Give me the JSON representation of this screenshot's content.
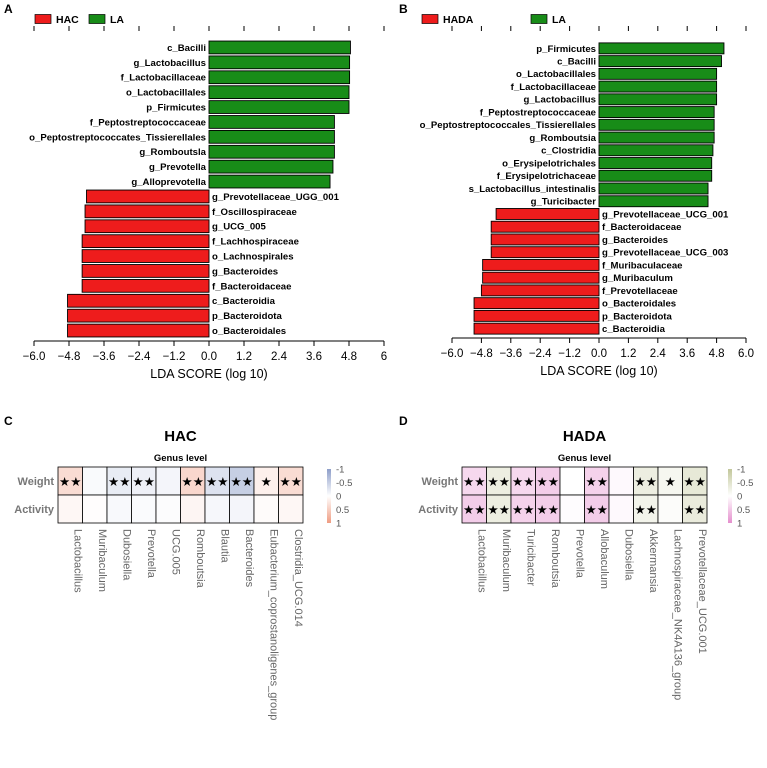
{
  "panels": {
    "A": "A",
    "B": "B",
    "C": "C",
    "D": "D"
  },
  "colors": {
    "red": "#ee1c1c",
    "green": "#188c18",
    "blue_max": "#8d9ec9",
    "red_max": "#ef9c82",
    "pink_max": "#e58fcd",
    "olive_max": "#c2c79a"
  },
  "chart_data": [
    {
      "type": "bar",
      "orientation": "horizontal",
      "panel": "A",
      "legend": [
        "HAC",
        "LA"
      ],
      "legend_position": "top-left",
      "xlabel": "LDA SCORE (log 10)",
      "xlim": [
        -6.0,
        6.0
      ],
      "xticks": [
        "−6.0",
        "−4.8",
        "−3.6",
        "−2.4",
        "−1.2",
        "0.0",
        "1.2",
        "2.4",
        "3.6",
        "4.8",
        "6"
      ],
      "xtick_values": [
        -6.0,
        -4.8,
        -3.6,
        -2.4,
        -1.2,
        0.0,
        1.2,
        2.4,
        3.6,
        4.8,
        6.0
      ],
      "categories": [
        "c_Bacilli",
        "g_Lactobacillus",
        "f_Lactobacillaceae",
        "o_Lactobacillales",
        "p_Firmicutes",
        "f_Peptostreptococcaceae",
        "o_Peptostreptococcates_Tissierellales",
        "g_Romboutsla",
        "g_Prevotella",
        "g_Alloprevotella",
        "g_Prevotellaceae_UGG_001",
        "f_Oscillospiraceae",
        "g_UCG_005",
        "f_Lachhospiraceae",
        "o_Lachnospirales",
        "g_Bacteroides",
        "f_Bacteroidaceae",
        "c_Bacteroidia",
        "p_Bacteroidota",
        "o_Bacteroidales"
      ],
      "values": [
        4.85,
        4.82,
        4.82,
        4.8,
        4.8,
        4.3,
        4.3,
        4.3,
        4.25,
        4.15,
        -4.2,
        -4.25,
        -4.25,
        -4.35,
        -4.35,
        -4.35,
        -4.35,
        -4.85,
        -4.85,
        -4.85
      ],
      "groups": [
        "LA",
        "LA",
        "LA",
        "LA",
        "LA",
        "LA",
        "LA",
        "LA",
        "LA",
        "LA",
        "HAC",
        "HAC",
        "HAC",
        "HAC",
        "HAC",
        "HAC",
        "HAC",
        "HAC",
        "HAC",
        "HAC"
      ]
    },
    {
      "type": "bar",
      "orientation": "horizontal",
      "panel": "B",
      "legend": [
        "HADA",
        "LA"
      ],
      "legend_position": "top-left",
      "xlabel": "LDA SCORE (log 10)",
      "xlim": [
        -6.0,
        6.0
      ],
      "xticks": [
        "−6.0",
        "−4.8",
        "−3.6",
        "−2.4",
        "−1.2",
        "0.0",
        "1.2",
        "2.4",
        "3.6",
        "4.8",
        "6.0"
      ],
      "xtick_values": [
        -6.0,
        -4.8,
        -3.6,
        -2.4,
        -1.2,
        0.0,
        1.2,
        2.4,
        3.6,
        4.8,
        6.0
      ],
      "categories": [
        "p_Firmicutes",
        "c_Bacilli",
        "o_Lactobacillales",
        "f_Lactobacillaceae",
        "g_Lactobacillus",
        "f_Peptostreptococcaceae",
        "o_Peptostreptococcales_Tissierellales",
        "g_Romboutsia",
        "c_Clostridia",
        "o_Erysipelotrichales",
        "f_Erysipelotrichaceae",
        "s_Lactobacillus_intestinalis",
        "g_Turicibacter",
        "g_Prevotellaceae_UCG_001",
        "f_Bacteroidaceae",
        "g_Bacteroides",
        "g_Prevotellaceae_UCG_003",
        "f_Muribaculaceae",
        "g_Muribaculum",
        "f_Prevotellaceae",
        "o_Bacteroidales",
        "p_Bacteroidota",
        "c_Bacteroidia"
      ],
      "values": [
        5.1,
        5.0,
        4.8,
        4.8,
        4.8,
        4.7,
        4.7,
        4.7,
        4.65,
        4.6,
        4.6,
        4.45,
        4.45,
        -4.2,
        -4.4,
        -4.4,
        -4.4,
        -4.75,
        -4.75,
        -4.8,
        -5.1,
        -5.1,
        -5.1
      ],
      "groups": [
        "LA",
        "LA",
        "LA",
        "LA",
        "LA",
        "LA",
        "LA",
        "LA",
        "LA",
        "LA",
        "LA",
        "LA",
        "LA",
        "HADA",
        "HADA",
        "HADA",
        "HADA",
        "HADA",
        "HADA",
        "HADA",
        "HADA",
        "HADA",
        "HADA"
      ]
    },
    {
      "type": "heatmap",
      "panel": "C",
      "title": "HAC",
      "subtitle": "Genus level",
      "rows": [
        "Weight",
        "Activity"
      ],
      "columns": [
        "Lactobacillus",
        "Muribaculum",
        "Dubosiella",
        "Prevotella",
        "UCG.005",
        "Romboutsia",
        "Blautia",
        "Bacteroides",
        "Eubacterium_coprostanoligenes_group",
        "Clostridia_UCG.014"
      ],
      "values": [
        [
          0.35,
          -0.05,
          -0.2,
          -0.15,
          -0.1,
          0.4,
          -0.3,
          -0.5,
          0.15,
          0.35
        ],
        [
          0.08,
          0.02,
          -0.06,
          -0.04,
          -0.03,
          0.1,
          -0.08,
          -0.1,
          0.04,
          0.08
        ]
      ],
      "stars": [
        [
          "★★",
          "",
          "★★",
          "★★",
          "",
          "★★",
          "★★",
          "★★",
          "★",
          "★★"
        ],
        [
          "",
          "",
          "",
          "",
          "",
          "",
          "",
          "",
          "",
          ""
        ]
      ],
      "colorbar": {
        "ticks": [
          "-1",
          "-0.5",
          "0",
          "0.5",
          "1"
        ],
        "tick_values": [
          -1,
          -0.5,
          0,
          0.5,
          1
        ]
      }
    },
    {
      "type": "heatmap",
      "panel": "D",
      "title": "HADA",
      "subtitle": "Genus level",
      "rows": [
        "Weight",
        "Activity"
      ],
      "columns": [
        "Lactobacillus",
        "Muribaculum",
        "Turicibacter",
        "Romboutsia",
        "Prevotella",
        "Allobaculum",
        "Dubosiella",
        "Akkermansia",
        "Lachnospiraceae_NK4A136_group",
        "Prevotellaceae_UCG.001"
      ],
      "values": [
        [
          0.35,
          -0.3,
          0.35,
          0.45,
          0.0,
          0.4,
          0.05,
          -0.3,
          -0.15,
          -0.4
        ],
        [
          0.45,
          -0.3,
          0.4,
          0.45,
          0.03,
          0.45,
          0.05,
          -0.2,
          -0.05,
          -0.35
        ]
      ],
      "stars": [
        [
          "★★",
          "★★",
          "★★",
          "★★",
          "",
          "★★",
          "",
          "★★",
          "★",
          "★★"
        ],
        [
          "★★",
          "★★",
          "★★",
          "★★",
          "",
          "★★",
          "",
          "★★",
          "",
          "★★"
        ]
      ],
      "colorbar": {
        "ticks": [
          "-1",
          "-0.5",
          "0",
          "0.5",
          "1"
        ],
        "tick_values": [
          -1,
          -0.5,
          0,
          0.5,
          1
        ]
      }
    }
  ]
}
